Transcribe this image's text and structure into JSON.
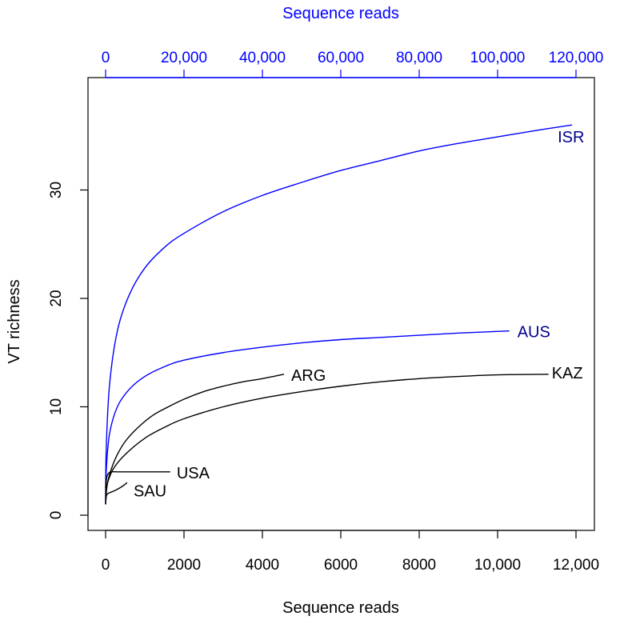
{
  "chart_data": {
    "type": "line",
    "bottom_axis": {
      "label": "Sequence reads",
      "range": [
        0,
        12400
      ],
      "ticks": [
        0,
        2000,
        4000,
        6000,
        8000,
        10000,
        12000
      ],
      "tick_labels": [
        "0",
        "2000",
        "4000",
        "6000",
        "8000",
        "10,000",
        "12,000"
      ],
      "color": "#000000"
    },
    "top_axis": {
      "label": "Sequence reads",
      "range": [
        0,
        124000
      ],
      "ticks": [
        0,
        20000,
        40000,
        60000,
        80000,
        100000,
        120000
      ],
      "tick_labels": [
        "0",
        "20,000",
        "40,000",
        "60,000",
        "80,000",
        "100,000",
        "120,000"
      ],
      "color": "#0000ff"
    },
    "left_axis": {
      "label": "VT richness",
      "range": [
        0,
        37
      ],
      "ticks": [
        0,
        10,
        20,
        30
      ],
      "tick_labels": [
        "0",
        "10",
        "20",
        "30"
      ]
    },
    "grid": false,
    "series": [
      {
        "name": "ISR",
        "axis": "top",
        "color": "#0000ff",
        "label_color": "#00008b",
        "x": [
          0,
          150,
          1000,
          3000,
          6000,
          10000,
          15000,
          20000,
          30000,
          40000,
          50000,
          60000,
          70000,
          80000,
          90000,
          100000,
          110000,
          119000
        ],
        "y": [
          1,
          6,
          12,
          17,
          20.3,
          22.8,
          24.7,
          26,
          28,
          29.5,
          30.7,
          31.8,
          32.7,
          33.6,
          34.3,
          34.9,
          35.5,
          36
        ]
      },
      {
        "name": "AUS",
        "axis": "top",
        "color": "#0000ff",
        "label_color": "#00008b",
        "x": [
          0,
          150,
          1000,
          3000,
          6000,
          10000,
          15000,
          20000,
          30000,
          40000,
          50000,
          60000,
          70000,
          80000,
          90000,
          103000
        ],
        "y": [
          1,
          4,
          7.5,
          10,
          11.6,
          12.8,
          13.7,
          14.3,
          15,
          15.5,
          15.9,
          16.2,
          16.4,
          16.6,
          16.8,
          17
        ]
      },
      {
        "name": "ARG",
        "axis": "bottom",
        "color": "#000000",
        "label_color": "#000000",
        "x": [
          0,
          50,
          150,
          300,
          500,
          800,
          1200,
          1600,
          2000,
          2500,
          3000,
          3500,
          4000,
          4550
        ],
        "y": [
          1.5,
          3,
          4.3,
          5.6,
          6.8,
          8,
          9.2,
          10,
          10.7,
          11.4,
          11.9,
          12.3,
          12.6,
          13
        ]
      },
      {
        "name": "KAZ",
        "axis": "bottom",
        "color": "#000000",
        "label_color": "#000000",
        "x": [
          0,
          50,
          200,
          500,
          1000,
          1500,
          2000,
          3000,
          4000,
          5000,
          6000,
          7000,
          8000,
          9000,
          10000,
          11300
        ],
        "y": [
          2,
          3,
          4.3,
          5.6,
          7.1,
          8.1,
          8.9,
          10,
          10.8,
          11.4,
          11.9,
          12.3,
          12.6,
          12.8,
          12.95,
          13
        ]
      },
      {
        "name": "USA",
        "axis": "bottom",
        "color": "#000000",
        "label_color": "#000000",
        "x": [
          0,
          30,
          80,
          150,
          300,
          600,
          1000,
          1650
        ],
        "y": [
          2.5,
          3.5,
          3.9,
          4,
          4,
          4,
          4,
          4
        ]
      },
      {
        "name": "SAU",
        "axis": "bottom",
        "color": "#000000",
        "label_color": "#000000",
        "x": [
          0,
          20,
          60,
          120,
          250,
          400,
          550
        ],
        "y": [
          1,
          1.8,
          2.0,
          2.1,
          2.3,
          2.6,
          3
        ]
      }
    ]
  }
}
